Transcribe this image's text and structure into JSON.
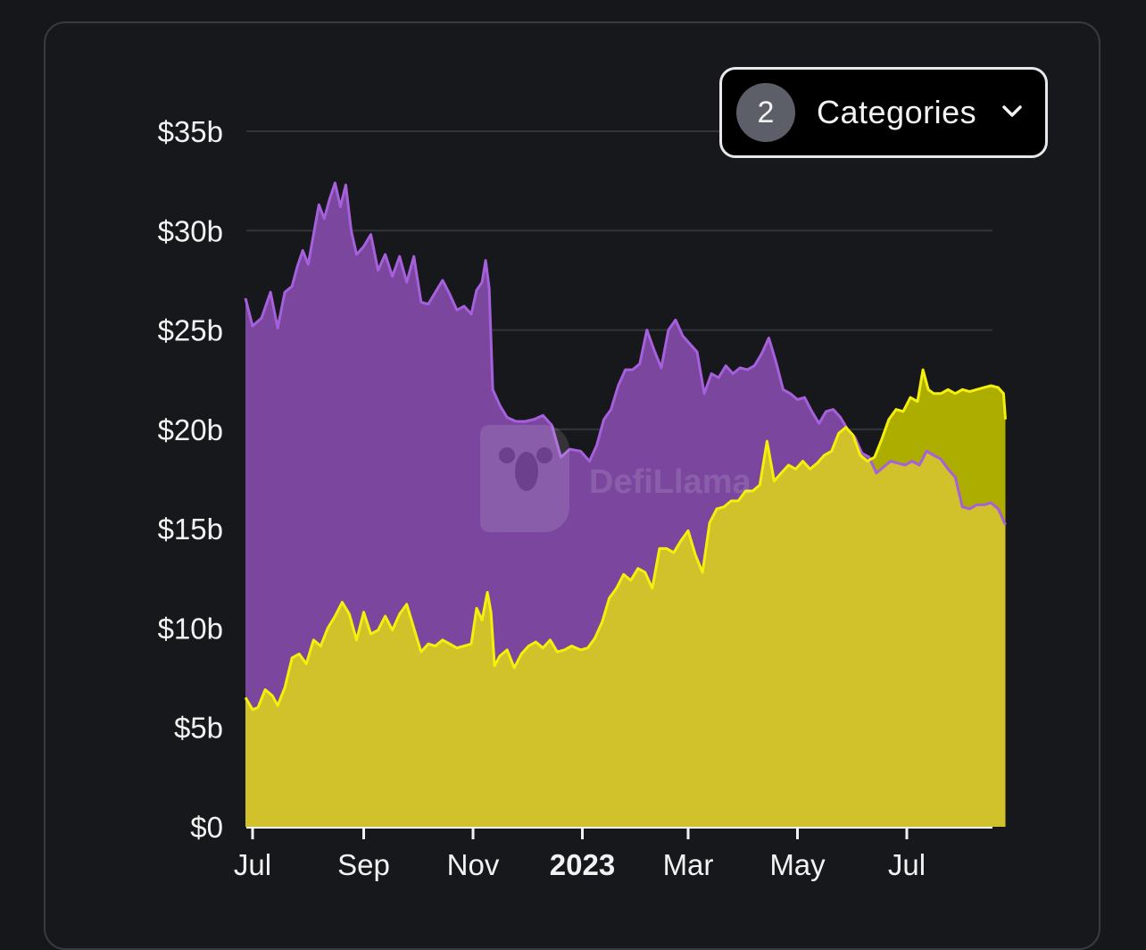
{
  "dropdown": {
    "count": "2",
    "label": "Categories",
    "icon": "chevron-down-icon"
  },
  "watermark": {
    "text": "DefiLlama",
    "icon": "llama-logo-icon"
  },
  "colors": {
    "background": "#16171b",
    "purple_fill": "#7a469e",
    "purple_line": "#a660dc",
    "yellow_fill": "#d1c22c",
    "yellow_line": "#f5f00a",
    "overlap_fill": "#adad00",
    "grid": "#33343a"
  },
  "chart_data": {
    "type": "area",
    "title": "",
    "xlabel": "",
    "ylabel": "",
    "x_start": "2022-07-01",
    "x_end": "2023-08-31",
    "ylim": [
      0,
      35
    ],
    "y_unit": "billions USD",
    "y_ticks": [
      {
        "value": 0,
        "label": "$0"
      },
      {
        "value": 5,
        "label": "$5b"
      },
      {
        "value": 10,
        "label": "$10b"
      },
      {
        "value": 15,
        "label": "$15b"
      },
      {
        "value": 20,
        "label": "$20b"
      },
      {
        "value": 25,
        "label": "$25b"
      },
      {
        "value": 30,
        "label": "$30b"
      },
      {
        "value": 35,
        "label": "$35b"
      }
    ],
    "x_ticks": [
      {
        "date": "2022-07-01",
        "label": "Jul",
        "bold": false
      },
      {
        "date": "2022-09-01",
        "label": "Sep",
        "bold": false
      },
      {
        "date": "2022-11-01",
        "label": "Nov",
        "bold": false
      },
      {
        "date": "2023-01-01",
        "label": "2023",
        "bold": true
      },
      {
        "date": "2023-03-01",
        "label": "Mar",
        "bold": false
      },
      {
        "date": "2023-05-01",
        "label": "May",
        "bold": false
      },
      {
        "date": "2023-07-01",
        "label": "Jul",
        "bold": false
      }
    ],
    "grid": true,
    "legend": "none",
    "series": [
      {
        "color": "purple",
        "points": [
          [
            "2022-06-27",
            26.6
          ],
          [
            "2022-07-01",
            25.2
          ],
          [
            "2022-07-06",
            25.6
          ],
          [
            "2022-07-11",
            26.9
          ],
          [
            "2022-07-15",
            25.1
          ],
          [
            "2022-07-19",
            26.9
          ],
          [
            "2022-07-23",
            27.2
          ],
          [
            "2022-07-26",
            28.2
          ],
          [
            "2022-07-29",
            29.0
          ],
          [
            "2022-08-01",
            28.3
          ],
          [
            "2022-08-04",
            29.8
          ],
          [
            "2022-08-07",
            31.3
          ],
          [
            "2022-08-10",
            30.6
          ],
          [
            "2022-08-13",
            31.6
          ],
          [
            "2022-08-16",
            32.4
          ],
          [
            "2022-08-19",
            31.2
          ],
          [
            "2022-08-22",
            32.3
          ],
          [
            "2022-08-25",
            30.0
          ],
          [
            "2022-08-28",
            28.8
          ],
          [
            "2022-09-01",
            29.2
          ],
          [
            "2022-09-05",
            29.8
          ],
          [
            "2022-09-09",
            28.0
          ],
          [
            "2022-09-13",
            28.8
          ],
          [
            "2022-09-17",
            27.7
          ],
          [
            "2022-09-21",
            28.7
          ],
          [
            "2022-09-25",
            27.4
          ],
          [
            "2022-09-29",
            28.7
          ],
          [
            "2022-10-03",
            26.4
          ],
          [
            "2022-10-07",
            26.3
          ],
          [
            "2022-10-11",
            26.9
          ],
          [
            "2022-10-15",
            27.5
          ],
          [
            "2022-10-19",
            26.8
          ],
          [
            "2022-10-23",
            26.0
          ],
          [
            "2022-10-27",
            26.2
          ],
          [
            "2022-10-31",
            25.8
          ],
          [
            "2022-11-03",
            27.0
          ],
          [
            "2022-11-06",
            27.4
          ],
          [
            "2022-11-08",
            28.5
          ],
          [
            "2022-11-10",
            27.1
          ],
          [
            "2022-11-12",
            22.0
          ],
          [
            "2022-11-16",
            21.2
          ],
          [
            "2022-11-20",
            20.6
          ],
          [
            "2022-11-25",
            20.4
          ],
          [
            "2022-11-30",
            20.4
          ],
          [
            "2022-12-05",
            20.5
          ],
          [
            "2022-12-10",
            20.7
          ],
          [
            "2022-12-15",
            20.2
          ],
          [
            "2022-12-20",
            18.6
          ],
          [
            "2022-12-25",
            19.0
          ],
          [
            "2022-12-31",
            18.9
          ],
          [
            "2023-01-05",
            18.4
          ],
          [
            "2023-01-09",
            19.2
          ],
          [
            "2023-01-13",
            20.5
          ],
          [
            "2023-01-17",
            21.0
          ],
          [
            "2023-01-21",
            22.2
          ],
          [
            "2023-01-25",
            23.0
          ],
          [
            "2023-01-29",
            23.0
          ],
          [
            "2023-02-02",
            23.3
          ],
          [
            "2023-02-06",
            25.0
          ],
          [
            "2023-02-10",
            24.0
          ],
          [
            "2023-02-14",
            23.1
          ],
          [
            "2023-02-18",
            25.0
          ],
          [
            "2023-02-22",
            25.5
          ],
          [
            "2023-02-26",
            24.7
          ],
          [
            "2023-03-02",
            24.3
          ],
          [
            "2023-03-06",
            23.9
          ],
          [
            "2023-03-10",
            21.8
          ],
          [
            "2023-03-14",
            22.8
          ],
          [
            "2023-03-18",
            22.6
          ],
          [
            "2023-03-22",
            23.2
          ],
          [
            "2023-03-26",
            22.8
          ],
          [
            "2023-03-30",
            23.1
          ],
          [
            "2023-04-03",
            23.0
          ],
          [
            "2023-04-07",
            23.2
          ],
          [
            "2023-04-11",
            23.8
          ],
          [
            "2023-04-15",
            24.6
          ],
          [
            "2023-04-19",
            23.4
          ],
          [
            "2023-04-23",
            22.0
          ],
          [
            "2023-04-27",
            21.8
          ],
          [
            "2023-05-01",
            21.5
          ],
          [
            "2023-05-05",
            21.6
          ],
          [
            "2023-05-09",
            20.9
          ],
          [
            "2023-05-13",
            20.3
          ],
          [
            "2023-05-17",
            20.9
          ],
          [
            "2023-05-21",
            21.0
          ],
          [
            "2023-05-25",
            20.6
          ],
          [
            "2023-05-29",
            20.0
          ],
          [
            "2023-06-02",
            19.6
          ],
          [
            "2023-06-06",
            18.8
          ],
          [
            "2023-06-10",
            18.6
          ],
          [
            "2023-06-14",
            17.8
          ],
          [
            "2023-06-18",
            18.1
          ],
          [
            "2023-06-22",
            18.4
          ],
          [
            "2023-06-26",
            18.3
          ],
          [
            "2023-06-30",
            18.2
          ],
          [
            "2023-07-04",
            18.4
          ],
          [
            "2023-07-08",
            18.2
          ],
          [
            "2023-07-12",
            18.9
          ],
          [
            "2023-07-16",
            18.7
          ],
          [
            "2023-07-20",
            18.5
          ],
          [
            "2023-07-24",
            18.0
          ],
          [
            "2023-07-28",
            17.6
          ],
          [
            "2023-08-01",
            16.1
          ],
          [
            "2023-08-05",
            16.0
          ],
          [
            "2023-08-09",
            16.2
          ],
          [
            "2023-08-13",
            16.2
          ],
          [
            "2023-08-17",
            16.3
          ],
          [
            "2023-08-21",
            16.0
          ],
          [
            "2023-08-25",
            15.2
          ]
        ]
      },
      {
        "color": "yellow",
        "points": [
          [
            "2022-06-27",
            6.5
          ],
          [
            "2022-07-01",
            5.9
          ],
          [
            "2022-07-04",
            6.0
          ],
          [
            "2022-07-08",
            6.9
          ],
          [
            "2022-07-12",
            6.6
          ],
          [
            "2022-07-15",
            6.1
          ],
          [
            "2022-07-19",
            7.0
          ],
          [
            "2022-07-23",
            8.5
          ],
          [
            "2022-07-27",
            8.7
          ],
          [
            "2022-07-31",
            8.2
          ],
          [
            "2022-08-04",
            9.4
          ],
          [
            "2022-08-08",
            9.1
          ],
          [
            "2022-08-12",
            10.0
          ],
          [
            "2022-08-16",
            10.6
          ],
          [
            "2022-08-20",
            11.3
          ],
          [
            "2022-08-24",
            10.7
          ],
          [
            "2022-08-28",
            9.4
          ],
          [
            "2022-09-01",
            10.8
          ],
          [
            "2022-09-05",
            9.7
          ],
          [
            "2022-09-09",
            9.9
          ],
          [
            "2022-09-13",
            10.6
          ],
          [
            "2022-09-17",
            9.9
          ],
          [
            "2022-09-21",
            10.7
          ],
          [
            "2022-09-25",
            11.2
          ],
          [
            "2022-09-29",
            10.0
          ],
          [
            "2022-10-03",
            8.8
          ],
          [
            "2022-10-07",
            9.2
          ],
          [
            "2022-10-11",
            9.1
          ],
          [
            "2022-10-15",
            9.4
          ],
          [
            "2022-10-19",
            9.2
          ],
          [
            "2022-10-23",
            9.0
          ],
          [
            "2022-10-27",
            9.1
          ],
          [
            "2022-10-31",
            9.2
          ],
          [
            "2022-11-03",
            11.0
          ],
          [
            "2022-11-06",
            10.4
          ],
          [
            "2022-11-09",
            11.8
          ],
          [
            "2022-11-11",
            10.8
          ],
          [
            "2022-11-13",
            8.1
          ],
          [
            "2022-11-16",
            8.6
          ],
          [
            "2022-11-20",
            8.9
          ],
          [
            "2022-11-24",
            8.0
          ],
          [
            "2022-11-28",
            8.7
          ],
          [
            "2022-12-02",
            9.1
          ],
          [
            "2022-12-06",
            9.3
          ],
          [
            "2022-12-10",
            9.0
          ],
          [
            "2022-12-14",
            9.4
          ],
          [
            "2022-12-18",
            8.8
          ],
          [
            "2022-12-22",
            8.9
          ],
          [
            "2022-12-26",
            9.1
          ],
          [
            "2022-12-31",
            8.9
          ],
          [
            "2023-01-04",
            9.0
          ],
          [
            "2023-01-08",
            9.5
          ],
          [
            "2023-01-12",
            10.3
          ],
          [
            "2023-01-16",
            11.5
          ],
          [
            "2023-01-20",
            12.0
          ],
          [
            "2023-01-24",
            12.7
          ],
          [
            "2023-01-28",
            12.4
          ],
          [
            "2023-02-01",
            13.0
          ],
          [
            "2023-02-05",
            12.8
          ],
          [
            "2023-02-09",
            12.0
          ],
          [
            "2023-02-13",
            14.0
          ],
          [
            "2023-02-17",
            14.0
          ],
          [
            "2023-02-21",
            13.8
          ],
          [
            "2023-02-25",
            14.4
          ],
          [
            "2023-03-01",
            14.9
          ],
          [
            "2023-03-05",
            13.7
          ],
          [
            "2023-03-09",
            12.8
          ],
          [
            "2023-03-13",
            15.3
          ],
          [
            "2023-03-17",
            16.0
          ],
          [
            "2023-03-21",
            16.1
          ],
          [
            "2023-03-25",
            16.4
          ],
          [
            "2023-03-29",
            16.4
          ],
          [
            "2023-04-02",
            16.9
          ],
          [
            "2023-04-06",
            16.9
          ],
          [
            "2023-04-10",
            17.2
          ],
          [
            "2023-04-14",
            19.4
          ],
          [
            "2023-04-18",
            17.4
          ],
          [
            "2023-04-22",
            17.8
          ],
          [
            "2023-04-26",
            18.2
          ],
          [
            "2023-04-30",
            18.0
          ],
          [
            "2023-05-04",
            18.4
          ],
          [
            "2023-05-08",
            18.0
          ],
          [
            "2023-05-12",
            18.3
          ],
          [
            "2023-05-16",
            18.7
          ],
          [
            "2023-05-20",
            18.9
          ],
          [
            "2023-05-24",
            19.8
          ],
          [
            "2023-05-28",
            20.1
          ],
          [
            "2023-06-01",
            19.7
          ],
          [
            "2023-06-05",
            18.7
          ],
          [
            "2023-06-09",
            18.4
          ],
          [
            "2023-06-13",
            18.6
          ],
          [
            "2023-06-17",
            19.5
          ],
          [
            "2023-06-21",
            20.5
          ],
          [
            "2023-06-25",
            21.0
          ],
          [
            "2023-06-29",
            20.9
          ],
          [
            "2023-07-03",
            21.6
          ],
          [
            "2023-07-07",
            21.4
          ],
          [
            "2023-07-10",
            23.0
          ],
          [
            "2023-07-13",
            22.0
          ],
          [
            "2023-07-16",
            21.8
          ],
          [
            "2023-07-20",
            21.8
          ],
          [
            "2023-07-24",
            22.0
          ],
          [
            "2023-07-28",
            21.8
          ],
          [
            "2023-08-01",
            22.0
          ],
          [
            "2023-08-05",
            21.9
          ],
          [
            "2023-08-09",
            22.0
          ],
          [
            "2023-08-13",
            22.1
          ],
          [
            "2023-08-17",
            22.2
          ],
          [
            "2023-08-21",
            22.1
          ],
          [
            "2023-08-24",
            21.8
          ],
          [
            "2023-08-25",
            20.5
          ]
        ]
      }
    ]
  }
}
